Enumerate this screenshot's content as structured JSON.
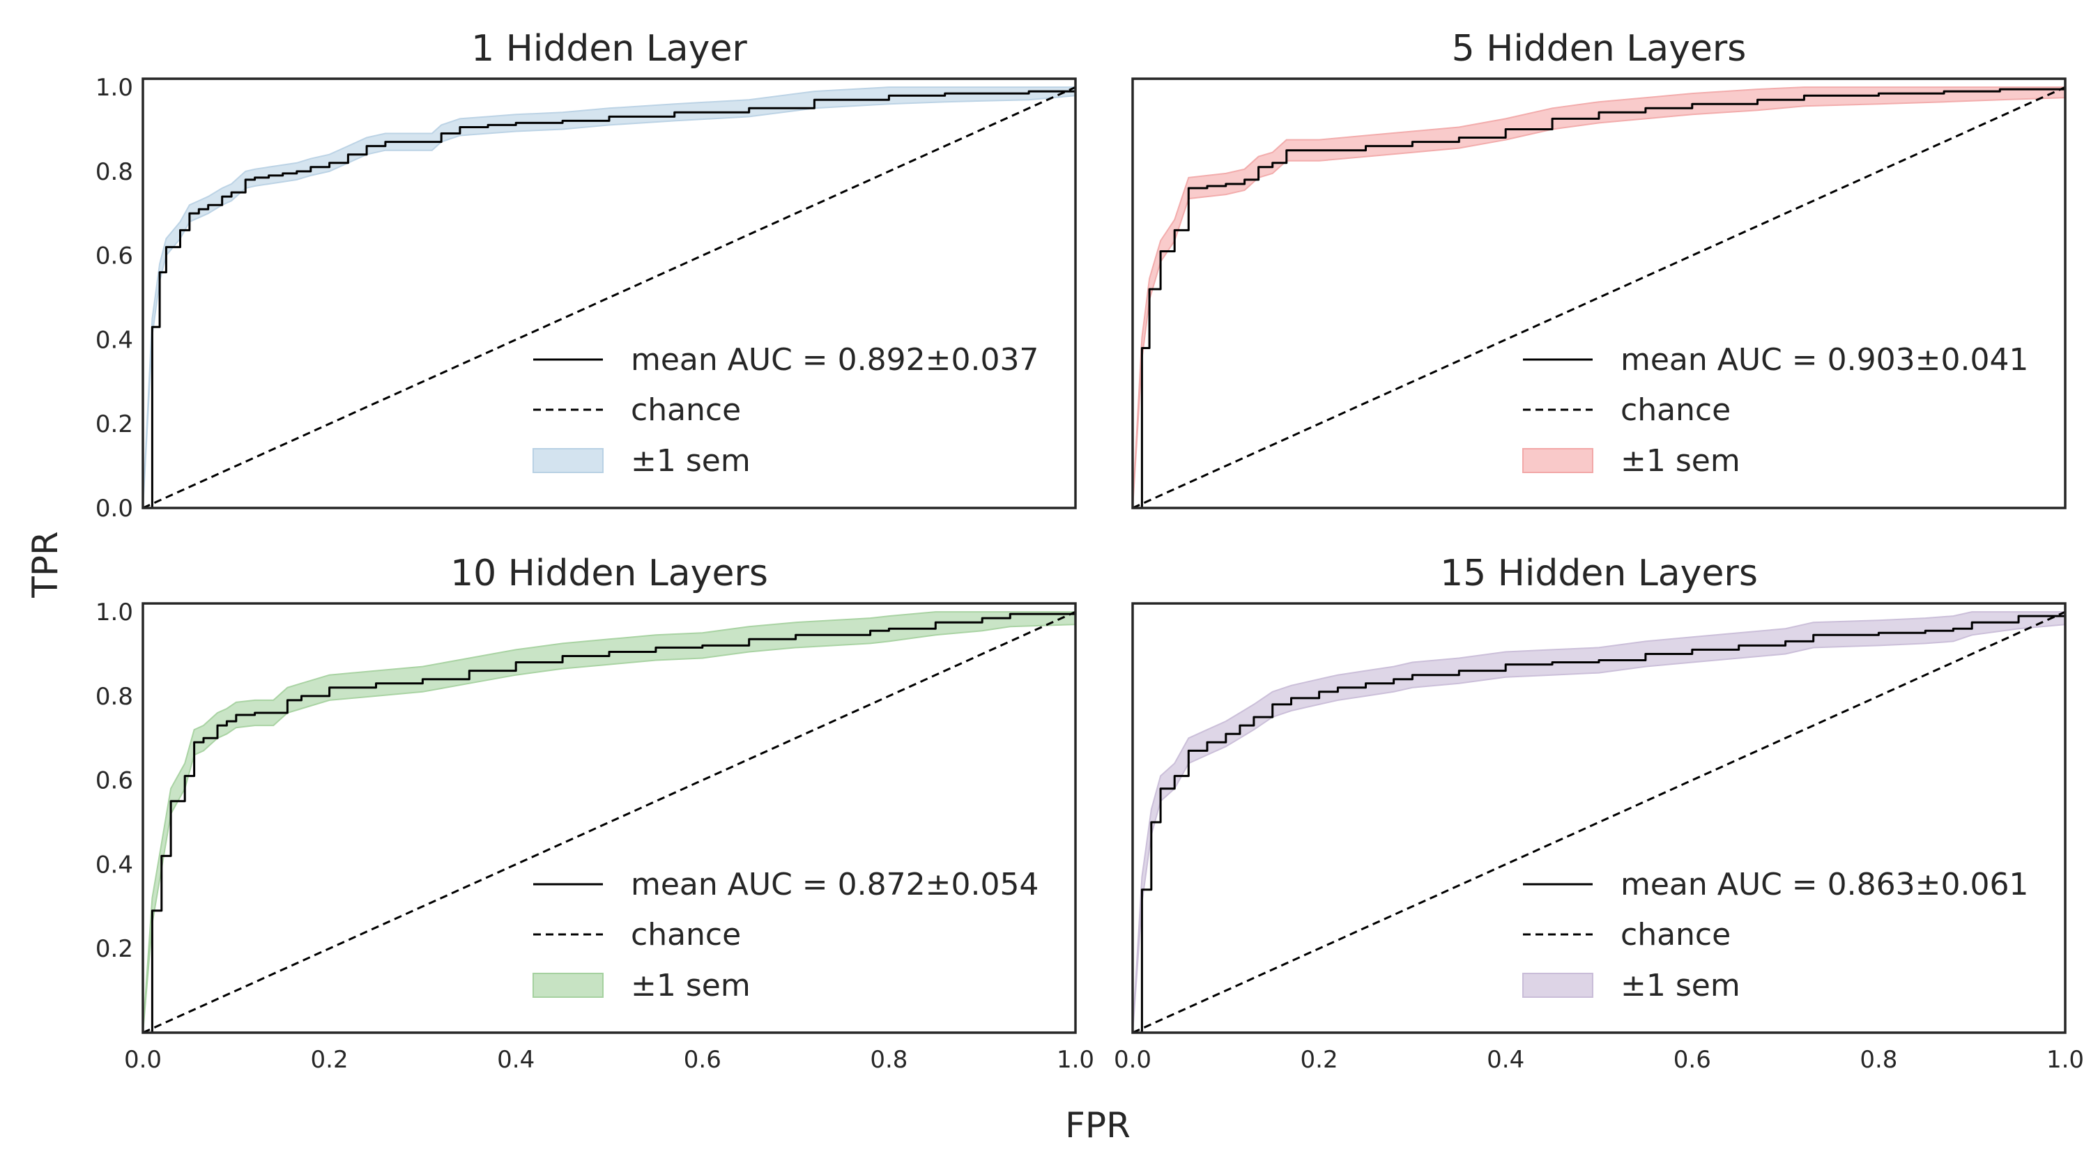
{
  "figure": {
    "xlabel": "FPR",
    "ylabel": "TPR"
  },
  "chart_data": [
    {
      "type": "line",
      "title": "1 Hidden Layer",
      "xlim": [
        0,
        1
      ],
      "ylim": [
        0,
        1.02
      ],
      "xticks": [
        "0.0",
        "0.2",
        "0.4",
        "0.6",
        "0.8",
        "1.0"
      ],
      "yticks": [
        "0.0",
        "0.2",
        "0.4",
        "0.6",
        "0.8",
        "1.0"
      ],
      "show_xticks": false,
      "grid": false,
      "legend_position": "lower-right",
      "band_color": "#d3e3ef",
      "band_stroke": "#b9d1e4",
      "series": [
        {
          "name": "mean AUC = 0.892±0.037",
          "x": [
            0,
            0.01,
            0.018,
            0.025,
            0.04,
            0.05,
            0.06,
            0.07,
            0.085,
            0.095,
            0.11,
            0.12,
            0.135,
            0.15,
            0.165,
            0.18,
            0.2,
            0.22,
            0.24,
            0.26,
            0.28,
            0.31,
            0.32,
            0.34,
            0.37,
            0.4,
            0.45,
            0.5,
            0.57,
            0.65,
            0.72,
            0.8,
            0.86,
            0.95,
            1.0
          ],
          "y": [
            0,
            0.43,
            0.56,
            0.62,
            0.66,
            0.7,
            0.71,
            0.72,
            0.74,
            0.75,
            0.78,
            0.785,
            0.79,
            0.795,
            0.8,
            0.81,
            0.82,
            0.84,
            0.86,
            0.87,
            0.87,
            0.87,
            0.89,
            0.905,
            0.91,
            0.915,
            0.92,
            0.93,
            0.94,
            0.95,
            0.97,
            0.98,
            0.985,
            0.99,
            1.0
          ],
          "sem": 0.02
        },
        {
          "name": "chance",
          "x": [
            0,
            1
          ],
          "y": [
            0,
            1
          ]
        }
      ],
      "band_label": "±1 sem"
    },
    {
      "type": "line",
      "title": "5 Hidden Layers",
      "xlim": [
        0,
        1
      ],
      "ylim": [
        0,
        1.02
      ],
      "xticks": [
        "0.0",
        "0.2",
        "0.4",
        "0.6",
        "0.8",
        "1.0"
      ],
      "yticks": [
        "0.0",
        "0.2",
        "0.4",
        "0.6",
        "0.8",
        "1.0"
      ],
      "show_xticks": false,
      "show_yticks": false,
      "grid": false,
      "legend_position": "lower-right",
      "band_color": "#f9c9c9",
      "band_stroke": "#f2a8a8",
      "series": [
        {
          "name": "mean AUC = 0.903±0.041",
          "x": [
            0,
            0.01,
            0.018,
            0.03,
            0.045,
            0.06,
            0.08,
            0.1,
            0.12,
            0.135,
            0.15,
            0.165,
            0.2,
            0.25,
            0.3,
            0.35,
            0.4,
            0.45,
            0.5,
            0.55,
            0.6,
            0.67,
            0.72,
            0.8,
            0.87,
            0.93,
            1.0
          ],
          "y": [
            0,
            0.38,
            0.52,
            0.61,
            0.66,
            0.76,
            0.765,
            0.77,
            0.78,
            0.81,
            0.82,
            0.85,
            0.85,
            0.86,
            0.87,
            0.88,
            0.9,
            0.925,
            0.94,
            0.95,
            0.96,
            0.97,
            0.98,
            0.985,
            0.99,
            0.995,
            1.0
          ],
          "sem": 0.025
        },
        {
          "name": "chance",
          "x": [
            0,
            1
          ],
          "y": [
            0,
            1
          ]
        }
      ],
      "band_label": "±1 sem"
    },
    {
      "type": "line",
      "title": "10 Hidden Layers",
      "xlim": [
        0,
        1
      ],
      "ylim": [
        0,
        1.02
      ],
      "xticks": [
        "0.0",
        "0.2",
        "0.4",
        "0.6",
        "0.8",
        "1.0"
      ],
      "yticks": [
        "0.2",
        "0.4",
        "0.6",
        "0.8",
        "1.0"
      ],
      "ytick_values": [
        0.2,
        0.4,
        0.6,
        0.8,
        1.0
      ],
      "show_xticks": true,
      "grid": false,
      "legend_position": "lower-right",
      "band_color": "#c7e3c3",
      "band_stroke": "#a5d19f",
      "series": [
        {
          "name": "mean AUC = 0.872±0.054",
          "x": [
            0,
            0.01,
            0.02,
            0.03,
            0.045,
            0.055,
            0.065,
            0.08,
            0.09,
            0.1,
            0.12,
            0.14,
            0.155,
            0.17,
            0.2,
            0.25,
            0.3,
            0.35,
            0.4,
            0.45,
            0.5,
            0.55,
            0.6,
            0.65,
            0.7,
            0.78,
            0.8,
            0.85,
            0.9,
            0.93,
            1.0
          ],
          "y": [
            0,
            0.29,
            0.42,
            0.55,
            0.61,
            0.69,
            0.7,
            0.73,
            0.74,
            0.755,
            0.76,
            0.76,
            0.79,
            0.8,
            0.82,
            0.83,
            0.84,
            0.86,
            0.88,
            0.895,
            0.905,
            0.915,
            0.92,
            0.935,
            0.945,
            0.955,
            0.96,
            0.975,
            0.985,
            0.995,
            1.0
          ],
          "sem": 0.03
        },
        {
          "name": "chance",
          "x": [
            0,
            1
          ],
          "y": [
            0,
            1
          ]
        }
      ],
      "band_label": "±1 sem"
    },
    {
      "type": "line",
      "title": "15 Hidden Layers",
      "xlim": [
        0,
        1
      ],
      "ylim": [
        0,
        1.02
      ],
      "xticks": [
        "0.0",
        "0.2",
        "0.4",
        "0.6",
        "0.8",
        "1.0"
      ],
      "yticks": [
        "0.2",
        "0.4",
        "0.6",
        "0.8",
        "1.0"
      ],
      "show_xticks": true,
      "show_yticks": false,
      "grid": false,
      "legend_position": "lower-right",
      "band_color": "#ddd4e6",
      "band_stroke": "#c9bcd8",
      "series": [
        {
          "name": "mean AUC = 0.863±0.061",
          "x": [
            0,
            0.01,
            0.02,
            0.03,
            0.045,
            0.06,
            0.08,
            0.1,
            0.115,
            0.13,
            0.15,
            0.17,
            0.2,
            0.22,
            0.25,
            0.28,
            0.3,
            0.35,
            0.4,
            0.45,
            0.5,
            0.55,
            0.6,
            0.65,
            0.7,
            0.73,
            0.8,
            0.85,
            0.88,
            0.9,
            0.95,
            1.0
          ],
          "y": [
            0,
            0.34,
            0.5,
            0.58,
            0.61,
            0.67,
            0.69,
            0.71,
            0.73,
            0.75,
            0.78,
            0.795,
            0.81,
            0.82,
            0.83,
            0.84,
            0.85,
            0.86,
            0.875,
            0.88,
            0.885,
            0.9,
            0.91,
            0.92,
            0.93,
            0.945,
            0.95,
            0.955,
            0.96,
            0.975,
            0.99,
            1.0
          ],
          "sem": 0.03
        },
        {
          "name": "chance",
          "x": [
            0,
            1
          ],
          "y": [
            0,
            1
          ]
        }
      ],
      "band_label": "±1 sem"
    }
  ]
}
